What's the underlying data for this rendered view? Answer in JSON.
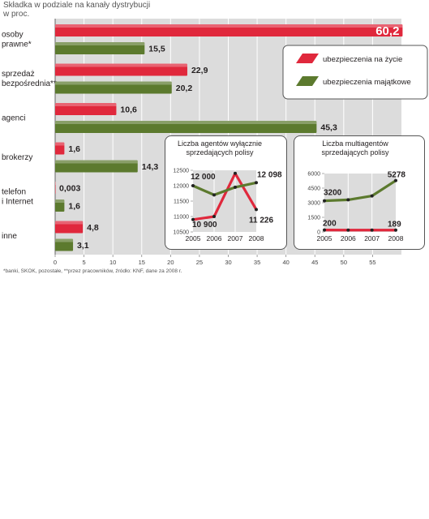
{
  "header": {
    "line1": "Składka w podziale na kanały dystrybucji",
    "line2": "w proc."
  },
  "legend": {
    "life": "ubezpieczenia na życie",
    "property": "ubezpieczenia majątkowe"
  },
  "colors": {
    "life": "#e0283c",
    "property": "#5c7a2e",
    "panel": "#dcdcdc",
    "grid": "#ffffff",
    "label_dark": "#231f20"
  },
  "footnote": "*banki, SKOK, pozostałe, **przez pracowników, źródło: KNF, dane za 2008 r.",
  "chart_data": [
    {
      "type": "bar",
      "orientation": "horizontal",
      "categories": [
        {
          "lines": [
            "osoby",
            "prawne*"
          ]
        },
        {
          "lines": [
            "sprzedaż",
            "bezpośrednia**"
          ]
        },
        {
          "lines": [
            "agenci"
          ]
        },
        {
          "lines": [
            "brokerzy"
          ]
        },
        {
          "lines": [
            "telefon",
            "i Internet"
          ]
        },
        {
          "lines": [
            "inne"
          ]
        }
      ],
      "series": [
        {
          "name": "ubezpieczenia na życie",
          "values": [
            60.2,
            22.9,
            10.6,
            1.6,
            0.003,
            4.8
          ],
          "labels": [
            "60,2",
            "22,9",
            "10,6",
            "1,6",
            "0,003",
            "4,8"
          ]
        },
        {
          "name": "ubezpieczenia majątkowe",
          "values": [
            15.5,
            20.2,
            45.3,
            14.3,
            1.6,
            3.1
          ],
          "labels": [
            "15,5",
            "20,2",
            "45,3",
            "14,3",
            "1,6",
            "3,1"
          ]
        }
      ],
      "xlim": [
        0,
        60
      ],
      "xticks": [
        "0",
        "5",
        "10",
        "15",
        "20",
        "25",
        "30",
        "35",
        "40",
        "45",
        "50",
        "55"
      ],
      "legend_position": "top-right"
    },
    {
      "type": "line",
      "title": [
        "Liczba agentów wyłącznie",
        "sprzedających polisy"
      ],
      "x": [
        "2005",
        "2006",
        "2007",
        "2008"
      ],
      "ylim": [
        10500,
        12500
      ],
      "yticks": [
        "12500",
        "12000",
        "11500",
        "11000",
        "10500"
      ],
      "series": [
        {
          "name": "ubezpieczenia na życie",
          "values": [
            10900,
            11000,
            12400,
            11226
          ]
        },
        {
          "name": "ubezpieczenia majątkowe",
          "values": [
            12000,
            11700,
            11950,
            12098
          ]
        }
      ],
      "annotations": [
        {
          "series": 1,
          "point": 0,
          "text": "12 000"
        },
        {
          "series": 0,
          "point": 0,
          "text": "10 900"
        },
        {
          "series": 1,
          "point": 3,
          "text": "12 098"
        },
        {
          "series": 0,
          "point": 3,
          "text": "11 226"
        }
      ]
    },
    {
      "type": "line",
      "title": [
        "Liczba multiagentów",
        "sprzedających polisy"
      ],
      "x": [
        "2005",
        "2006",
        "2007",
        "2008"
      ],
      "ylim": [
        0,
        6000
      ],
      "yticks": [
        "6000",
        "4500",
        "3000",
        "1500",
        "0"
      ],
      "series": [
        {
          "name": "ubezpieczenia na życie",
          "values": [
            200,
            190,
            185,
            189
          ]
        },
        {
          "name": "ubezpieczenia majątkowe",
          "values": [
            3200,
            3300,
            3700,
            5278
          ]
        }
      ],
      "annotations": [
        {
          "series": 1,
          "point": 0,
          "text": "3200"
        },
        {
          "series": 0,
          "point": 0,
          "text": "200"
        },
        {
          "series": 1,
          "point": 3,
          "text": "5278"
        },
        {
          "series": 0,
          "point": 3,
          "text": "189"
        }
      ]
    }
  ]
}
